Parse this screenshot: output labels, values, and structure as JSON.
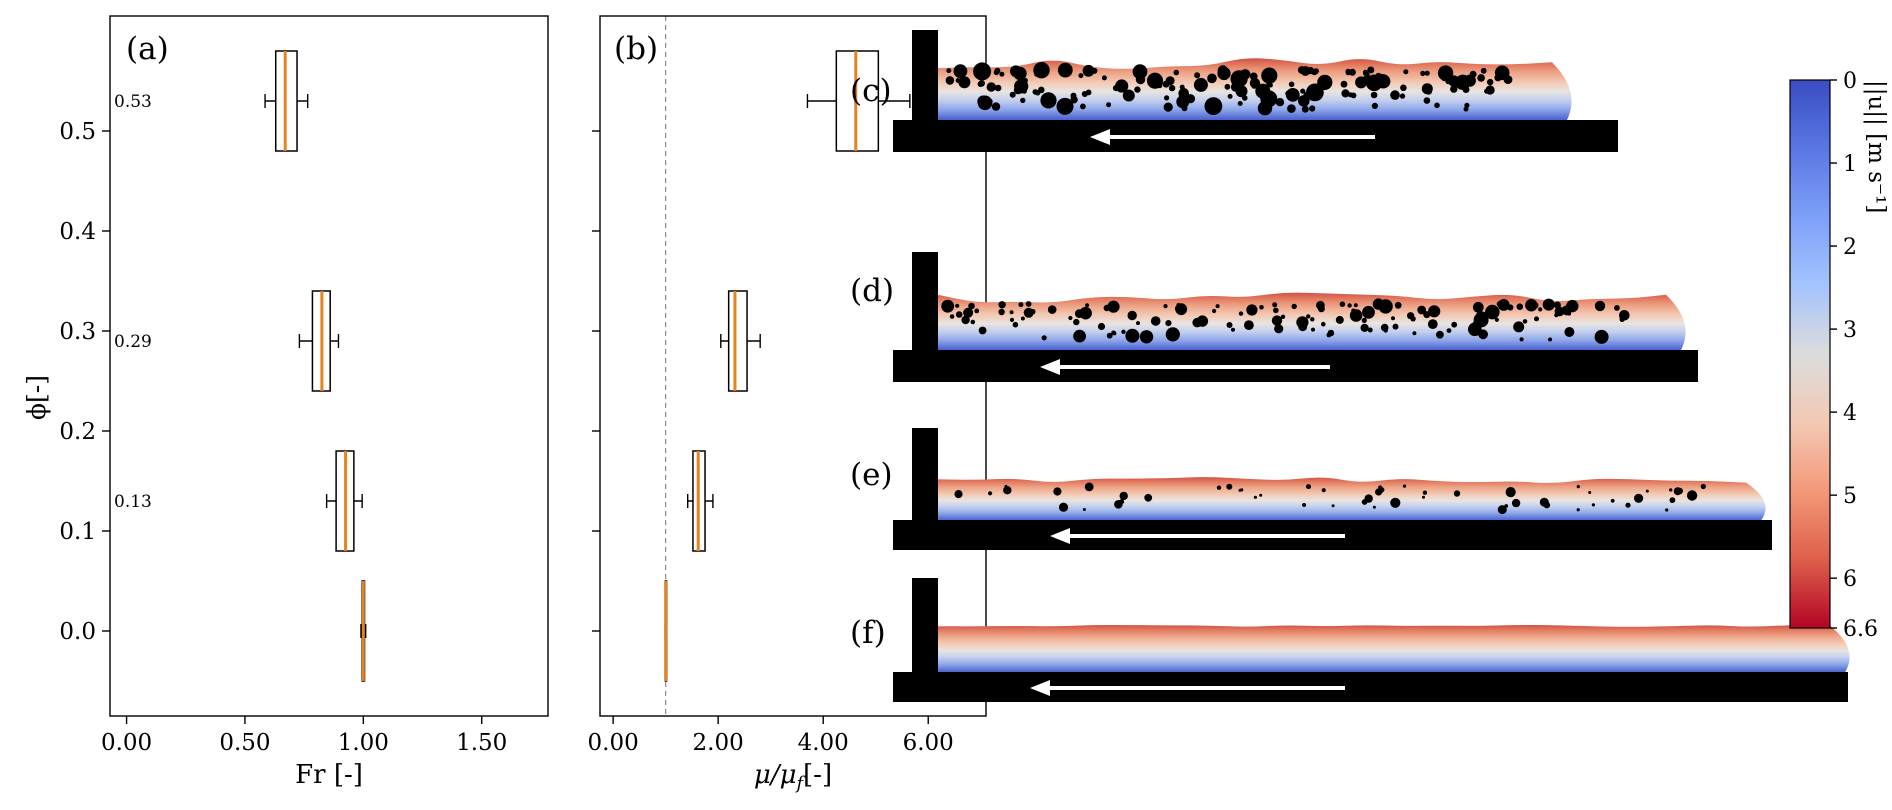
{
  "chart_data": [
    {
      "type": "box",
      "orientation": "horizontal",
      "panel_label": "(a)",
      "xlabel": "Fr [-]",
      "ylabel": "ϕ[-]",
      "xlim": [
        -0.07,
        1.78
      ],
      "ylim": [
        -0.085,
        0.615
      ],
      "grid": false,
      "x_ticks": [
        {
          "v": 0.0,
          "label": "0.00"
        },
        {
          "v": 0.5,
          "label": "0.50"
        },
        {
          "v": 1.0,
          "label": "1.00"
        },
        {
          "v": 1.5,
          "label": "1.50"
        }
      ],
      "y_ticks": [
        {
          "v": 0.0,
          "label": "0.0"
        },
        {
          "v": 0.1,
          "label": "0.1"
        },
        {
          "v": 0.2,
          "label": "0.2"
        },
        {
          "v": 0.3,
          "label": "0.3"
        },
        {
          "v": 0.4,
          "label": "0.4"
        },
        {
          "v": 0.5,
          "label": "0.5"
        }
      ],
      "group_annotations": [
        {
          "text": "0.53",
          "y": 0.53
        },
        {
          "text": "0.29",
          "y": 0.29
        },
        {
          "text": "0.13",
          "y": 0.13
        }
      ],
      "median_color": "#e8821d",
      "box_edge_color": "#000000",
      "boxes": [
        {
          "phi_center": 0.53,
          "half_height": 0.05,
          "whisker_low": 0.585,
          "q1": 0.63,
          "median": 0.67,
          "q3": 0.72,
          "whisker_high": 0.765
        },
        {
          "phi_center": 0.29,
          "half_height": 0.05,
          "whisker_low": 0.73,
          "q1": 0.785,
          "median": 0.825,
          "q3": 0.86,
          "whisker_high": 0.895
        },
        {
          "phi_center": 0.13,
          "half_height": 0.05,
          "whisker_low": 0.845,
          "q1": 0.885,
          "median": 0.925,
          "q3": 0.96,
          "whisker_high": 0.995
        },
        {
          "phi_center": 0.0,
          "half_height": 0.05,
          "whisker_low": 0.99,
          "q1": 0.995,
          "median": 1.0,
          "q3": 1.005,
          "whisker_high": 1.01
        }
      ]
    },
    {
      "type": "box",
      "orientation": "horizontal",
      "panel_label": "(b)",
      "xlabel_main": "μ/μ",
      "xlabel_sub": "f",
      "xlabel_tail": "[-]",
      "xlim": [
        -0.25,
        7.1
      ],
      "ylim": [
        -0.085,
        0.615
      ],
      "grid": false,
      "reference_line_x": 1.0,
      "x_ticks": [
        {
          "v": 0.0,
          "label": "0.00"
        },
        {
          "v": 2.0,
          "label": "2.00"
        },
        {
          "v": 4.0,
          "label": "4.00"
        },
        {
          "v": 6.0,
          "label": "6.00"
        }
      ],
      "boxes": [
        {
          "phi_center": 0.53,
          "half_height": 0.05,
          "whisker_low": 3.7,
          "q1": 4.25,
          "median": 4.62,
          "q3": 5.05,
          "whisker_high": 5.65
        },
        {
          "phi_center": 0.29,
          "half_height": 0.05,
          "whisker_low": 2.05,
          "q1": 2.2,
          "median": 2.32,
          "q3": 2.55,
          "whisker_high": 2.8
        },
        {
          "phi_center": 0.13,
          "half_height": 0.05,
          "whisker_low": 1.42,
          "q1": 1.52,
          "median": 1.62,
          "q3": 1.75,
          "whisker_high": 1.9
        },
        {
          "phi_center": 0.0,
          "half_height": 0.05,
          "whisker_low": 0.99,
          "q1": 0.995,
          "median": 1.0,
          "q3": 1.005,
          "whisker_high": 1.01
        }
      ]
    }
  ],
  "snapshots": [
    {
      "label": "(c)",
      "particle_count": 165,
      "particle_size": "large",
      "flow_direction": "left"
    },
    {
      "label": "(d)",
      "particle_count": 140,
      "particle_size": "medium",
      "flow_direction": "left"
    },
    {
      "label": "(e)",
      "particle_count": 55,
      "particle_size": "small",
      "flow_direction": "left"
    },
    {
      "label": "(f)",
      "particle_count": 0,
      "particle_size": "none",
      "flow_direction": "left"
    }
  ],
  "colorbar": {
    "label": "||u|| [m s⁻¹]",
    "min": 0,
    "max": 6.6,
    "ticks": [
      {
        "v": 0,
        "label": "0"
      },
      {
        "v": 1,
        "label": "1"
      },
      {
        "v": 2,
        "label": "2"
      },
      {
        "v": 3,
        "label": "3"
      },
      {
        "v": 4,
        "label": "4"
      },
      {
        "v": 5,
        "label": "5"
      },
      {
        "v": 6,
        "label": "6"
      },
      {
        "v": 6.6,
        "label": "6.6"
      }
    ],
    "colormap": [
      "#3b4cc0",
      "#5977e3",
      "#7da0f9",
      "#a5c3fe",
      "#dcdcdc",
      "#f2c9b4",
      "#f4987a",
      "#dd5f4b",
      "#b40426"
    ]
  }
}
